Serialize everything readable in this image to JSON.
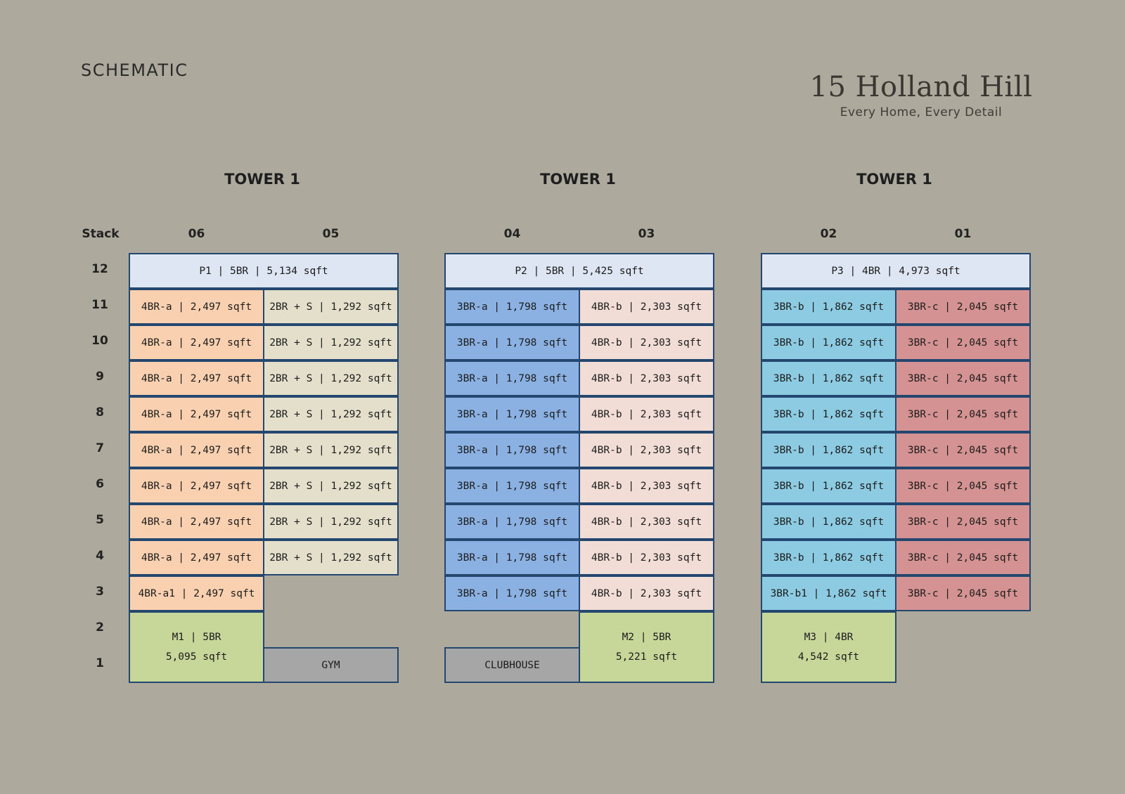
{
  "title": "SCHEMATIC",
  "brand": {
    "name": "15 Holland Hill",
    "tagline": "Every Home, Every Detail"
  },
  "towers": [
    "TOWER 1",
    "TOWER 1",
    "TOWER 1"
  ],
  "stack_label": "Stack",
  "stacks": [
    "06",
    "05",
    "04",
    "03",
    "02",
    "01"
  ],
  "floors": [
    "12",
    "11",
    "10",
    "9",
    "8",
    "7",
    "6",
    "5",
    "4",
    "3",
    "2",
    "1"
  ],
  "colors": {
    "penthouse": "#dde6f2",
    "s06": "#f9d1b0",
    "s05": "#e3dfcb",
    "s04": "#8bb1e3",
    "s03": "#f1ddd6",
    "s02": "#8ccbe2",
    "s01": "#d49392",
    "maisonette": "#c7d79a",
    "amenity": "#a6a6a6",
    "border": "#24476f"
  },
  "units": {
    "p1": "P1 | 5BR | 5,134 sqft",
    "p2": "P2 | 5BR | 5,425 sqft",
    "p3": "P3 | 4BR | 4,973 sqft",
    "s06": "4BR-a | 2,497 sqft",
    "s06_f3": "4BR-a1 | 2,497 sqft",
    "s05": "2BR + S | 1,292 sqft",
    "s04": "3BR-a | 1,798 sqft",
    "s03": "4BR-b | 2,303 sqft",
    "s02": "3BR-b | 1,862 sqft",
    "s02_f3": "3BR-b1 | 1,862 sqft",
    "s01": "3BR-c | 2,045 sqft",
    "m1": [
      "M1 | 5BR",
      "5,095 sqft"
    ],
    "m2": [
      "M2 | 5BR",
      "5,221 sqft"
    ],
    "m3": [
      "M3 | 4BR",
      "4,542 sqft"
    ],
    "gym": "GYM",
    "clubhouse": "CLUBHOUSE"
  }
}
